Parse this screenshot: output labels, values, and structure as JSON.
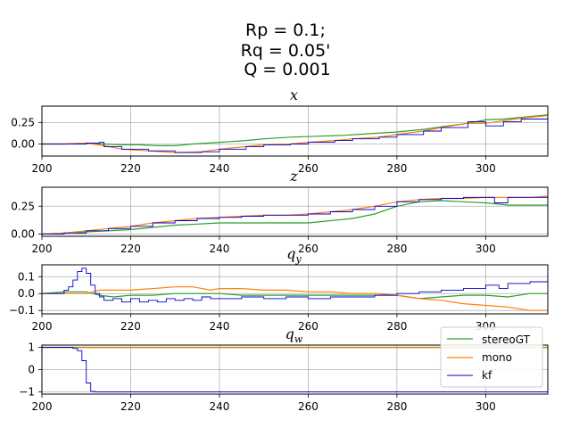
{
  "figure": {
    "title_lines": [
      "Rp = 0.1;",
      "Rq = 0.05'",
      "Q = 0.001"
    ]
  },
  "colors": {
    "stereoGT": "#2ca02c",
    "mono": "#ff7f0e",
    "kf": "#0000cc",
    "grid": "#b0b0b0"
  },
  "legend": {
    "placement": "upper-right of bottom subplot",
    "entries": [
      "stereoGT",
      "mono",
      "kf"
    ]
  },
  "chart_data": [
    {
      "type": "line",
      "title": "x",
      "grid": true,
      "xlim": [
        200,
        314
      ],
      "ylim": [
        -0.14,
        0.44
      ],
      "xticks": [
        200,
        220,
        240,
        260,
        280,
        300
      ],
      "yticks": [
        0.0,
        0.25
      ],
      "ytick_labels": [
        "0.00",
        "0.25"
      ],
      "series": [
        {
          "name": "stereoGT",
          "step": false,
          "x": [
            200,
            205,
            210,
            214,
            218,
            222,
            226,
            230,
            234,
            240,
            246,
            250,
            256,
            262,
            268,
            274,
            280,
            286,
            290,
            296,
            300,
            304,
            308,
            314
          ],
          "y": [
            0.0,
            0.0,
            0.01,
            0.0,
            -0.01,
            -0.01,
            -0.02,
            -0.02,
            0.0,
            0.02,
            0.04,
            0.06,
            0.08,
            0.09,
            0.1,
            0.12,
            0.14,
            0.17,
            0.2,
            0.24,
            0.28,
            0.29,
            0.31,
            0.34
          ]
        },
        {
          "name": "mono",
          "step": false,
          "x": [
            200,
            205,
            210,
            214,
            218,
            224,
            230,
            236,
            240,
            246,
            250,
            256,
            260,
            266,
            270,
            276,
            280,
            286,
            290,
            296,
            300,
            304,
            308,
            314
          ],
          "y": [
            0.0,
            0.0,
            0.01,
            -0.02,
            -0.06,
            -0.08,
            -0.1,
            -0.09,
            -0.06,
            -0.03,
            -0.01,
            0.0,
            0.02,
            0.04,
            0.06,
            0.08,
            0.11,
            0.15,
            0.19,
            0.24,
            0.24,
            0.27,
            0.3,
            0.33
          ]
        },
        {
          "name": "kf",
          "step": true,
          "x": [
            200,
            205,
            210,
            213,
            214,
            218,
            224,
            230,
            236,
            240,
            246,
            250,
            256,
            260,
            266,
            270,
            276,
            280,
            286,
            290,
            296,
            300,
            304,
            308,
            314
          ],
          "y": [
            0.0,
            0.0,
            0.01,
            0.02,
            -0.03,
            -0.06,
            -0.08,
            -0.1,
            -0.09,
            -0.06,
            -0.03,
            -0.01,
            0.0,
            0.02,
            0.04,
            0.06,
            0.08,
            0.11,
            0.15,
            0.19,
            0.26,
            0.21,
            0.26,
            0.29,
            0.34
          ]
        }
      ]
    },
    {
      "type": "line",
      "title": "z",
      "grid": true,
      "xlim": [
        200,
        314
      ],
      "ylim": [
        -0.02,
        0.42
      ],
      "xticks": [
        200,
        220,
        240,
        260,
        280,
        300
      ],
      "yticks": [
        0.0,
        0.25
      ],
      "ytick_labels": [
        "0.00",
        "0.25"
      ],
      "series": [
        {
          "name": "stereoGT",
          "step": false,
          "x": [
            200,
            205,
            210,
            215,
            220,
            225,
            230,
            235,
            240,
            245,
            250,
            255,
            260,
            265,
            270,
            275,
            280,
            285,
            290,
            295,
            300,
            305,
            310,
            314
          ],
          "y": [
            0.0,
            0.01,
            0.02,
            0.03,
            0.04,
            0.06,
            0.08,
            0.09,
            0.1,
            0.1,
            0.1,
            0.1,
            0.1,
            0.12,
            0.14,
            0.18,
            0.25,
            0.29,
            0.3,
            0.29,
            0.28,
            0.26,
            0.26,
            0.26
          ]
        },
        {
          "name": "mono",
          "step": false,
          "x": [
            200,
            205,
            210,
            215,
            220,
            225,
            230,
            235,
            240,
            245,
            250,
            255,
            260,
            265,
            270,
            275,
            280,
            285,
            290,
            295,
            300,
            305,
            310,
            314
          ],
          "y": [
            0.0,
            0.01,
            0.03,
            0.05,
            0.07,
            0.1,
            0.12,
            0.14,
            0.15,
            0.16,
            0.17,
            0.17,
            0.18,
            0.2,
            0.22,
            0.25,
            0.29,
            0.31,
            0.32,
            0.32,
            0.33,
            0.33,
            0.33,
            0.34
          ]
        },
        {
          "name": "kf",
          "step": true,
          "x": [
            200,
            205,
            210,
            215,
            220,
            225,
            230,
            235,
            240,
            245,
            250,
            255,
            260,
            265,
            270,
            275,
            280,
            285,
            290,
            295,
            300,
            302,
            305,
            310,
            314
          ],
          "y": [
            0.0,
            0.01,
            0.03,
            0.05,
            0.07,
            0.1,
            0.12,
            0.14,
            0.15,
            0.16,
            0.17,
            0.17,
            0.18,
            0.2,
            0.22,
            0.25,
            0.29,
            0.31,
            0.32,
            0.33,
            0.33,
            0.28,
            0.33,
            0.33,
            0.34
          ]
        }
      ]
    },
    {
      "type": "line",
      "title": "q_y",
      "grid": true,
      "xlim": [
        200,
        314
      ],
      "ylim": [
        -0.12,
        0.17
      ],
      "xticks": [
        200,
        220,
        240,
        260,
        280,
        300
      ],
      "yticks": [
        -0.1,
        0.0,
        0.1
      ],
      "ytick_labels": [
        "−0.1",
        "0.0",
        "0.1"
      ],
      "series": [
        {
          "name": "stereoGT",
          "step": false,
          "x": [
            200,
            205,
            210,
            213,
            216,
            220,
            225,
            230,
            235,
            240,
            245,
            250,
            255,
            260,
            265,
            270,
            275,
            280,
            285,
            290,
            295,
            300,
            305,
            310,
            314
          ],
          "y": [
            0.0,
            0.01,
            0.01,
            -0.01,
            -0.02,
            -0.01,
            -0.01,
            0.0,
            0.0,
            0.0,
            -0.01,
            -0.01,
            -0.01,
            -0.01,
            -0.01,
            -0.01,
            -0.01,
            -0.01,
            -0.03,
            -0.02,
            -0.01,
            -0.01,
            -0.02,
            0.0,
            0.0
          ]
        },
        {
          "name": "mono",
          "step": false,
          "x": [
            200,
            205,
            210,
            213,
            216,
            220,
            225,
            230,
            234,
            238,
            240,
            245,
            250,
            255,
            260,
            265,
            270,
            275,
            280,
            285,
            290,
            295,
            300,
            305,
            310,
            314
          ],
          "y": [
            0.0,
            0.0,
            0.0,
            0.02,
            0.02,
            0.02,
            0.03,
            0.04,
            0.04,
            0.02,
            0.03,
            0.03,
            0.02,
            0.02,
            0.01,
            0.01,
            0.0,
            0.0,
            -0.01,
            -0.03,
            -0.04,
            -0.06,
            -0.07,
            -0.08,
            -0.1,
            -0.1
          ]
        },
        {
          "name": "kf",
          "step": true,
          "x": [
            200,
            203,
            205,
            206,
            207,
            208,
            209,
            210,
            211,
            212,
            213,
            214,
            216,
            218,
            220,
            222,
            224,
            226,
            228,
            230,
            232,
            234,
            236,
            238,
            240,
            245,
            250,
            255,
            260,
            265,
            270,
            275,
            280,
            285,
            290,
            295,
            300,
            303,
            305,
            310,
            314
          ],
          "y": [
            0.0,
            0.0,
            0.02,
            0.04,
            0.08,
            0.13,
            0.15,
            0.12,
            0.05,
            0.0,
            -0.02,
            -0.04,
            -0.03,
            -0.05,
            -0.03,
            -0.05,
            -0.04,
            -0.05,
            -0.03,
            -0.04,
            -0.03,
            -0.04,
            -0.02,
            -0.03,
            -0.03,
            -0.02,
            -0.03,
            -0.02,
            -0.03,
            -0.02,
            -0.02,
            -0.01,
            0.0,
            0.01,
            0.02,
            0.03,
            0.05,
            0.03,
            0.06,
            0.07,
            0.07
          ]
        }
      ]
    },
    {
      "type": "line",
      "title": "q_w",
      "grid": true,
      "xlim": [
        200,
        314
      ],
      "ylim": [
        -1.1,
        1.1
      ],
      "xticks": [
        200,
        220,
        240,
        260,
        280,
        300
      ],
      "yticks": [
        -1,
        0,
        1
      ],
      "ytick_labels": [
        "−1",
        "0",
        "1"
      ],
      "series": [
        {
          "name": "stereoGT",
          "step": false,
          "x": [
            200,
            314
          ],
          "y": [
            1.0,
            1.0
          ]
        },
        {
          "name": "mono",
          "step": false,
          "x": [
            200,
            314
          ],
          "y": [
            0.99,
            0.99
          ]
        },
        {
          "name": "kf",
          "step": true,
          "x": [
            200,
            207,
            208,
            209,
            210,
            211,
            212,
            230,
            260,
            290,
            314
          ],
          "y": [
            1.0,
            0.95,
            0.85,
            0.4,
            -0.6,
            -0.98,
            -1.0,
            -1.0,
            -1.0,
            -1.0,
            -1.0
          ]
        }
      ]
    }
  ]
}
